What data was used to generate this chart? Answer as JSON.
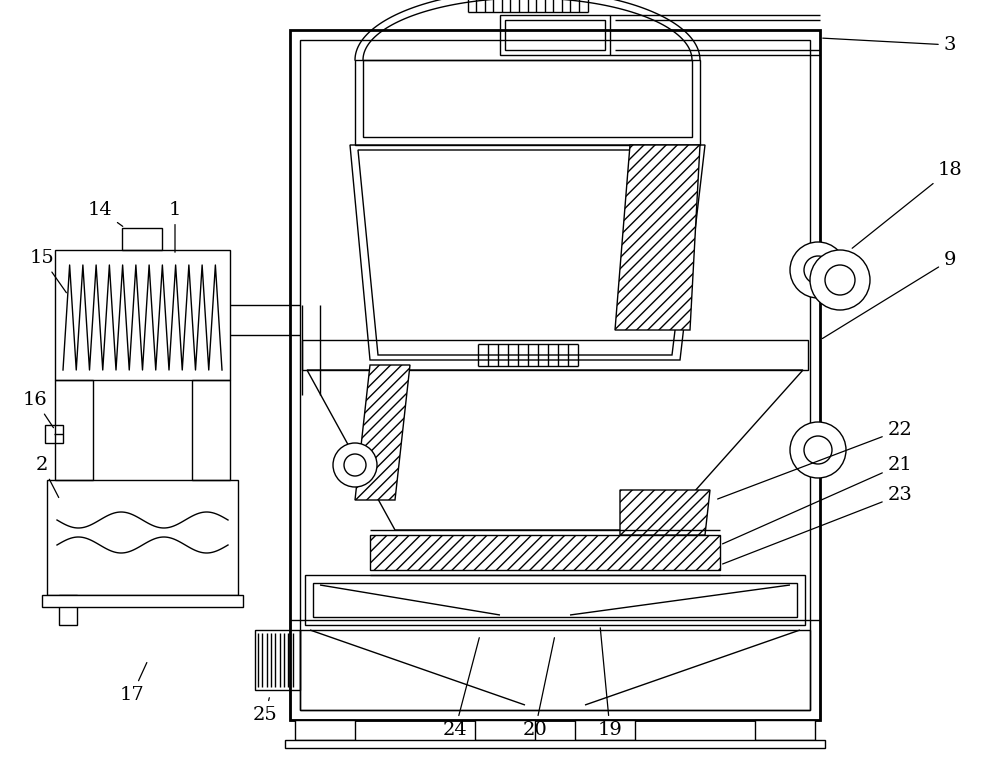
{
  "bg_color": "#ffffff",
  "line_color": "#000000",
  "fig_width": 10.0,
  "fig_height": 7.64,
  "dpi": 100
}
